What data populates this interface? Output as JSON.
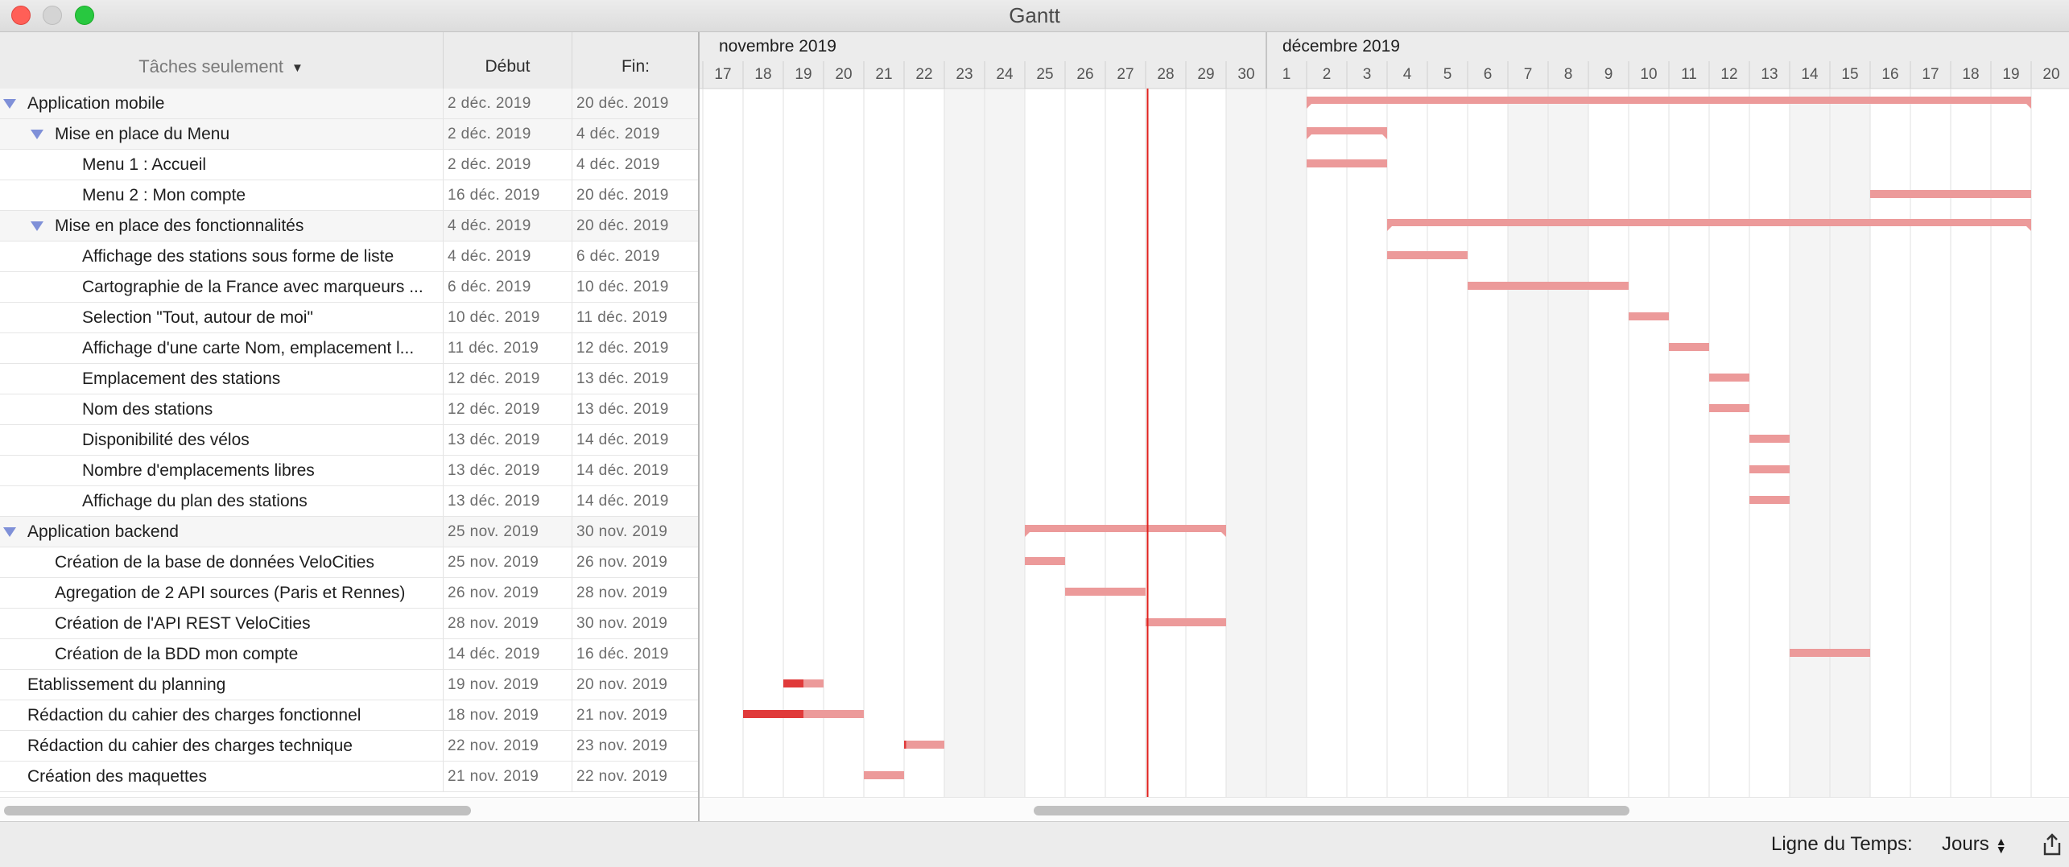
{
  "window": {
    "title": "Gantt"
  },
  "table": {
    "header": {
      "name": "Tâches seulement",
      "start": "Début",
      "end": "Fin:"
    },
    "rows": [
      {
        "name": "Application mobile",
        "start": "2 déc. 2019",
        "end": "20 déc. 2019",
        "level": 0,
        "group": true,
        "expanded": true
      },
      {
        "name": "Mise en place du Menu",
        "start": "2 déc. 2019",
        "end": "4 déc. 2019",
        "level": 1,
        "group": true,
        "expanded": true
      },
      {
        "name": "Menu 1 : Accueil",
        "start": "2 déc. 2019",
        "end": "4 déc. 2019",
        "level": 2,
        "group": false
      },
      {
        "name": "Menu 2 : Mon compte",
        "start": "16 déc. 2019",
        "end": "20 déc. 2019",
        "level": 2,
        "group": false
      },
      {
        "name": "Mise en place des fonctionnalités",
        "start": "4 déc. 2019",
        "end": "20 déc. 2019",
        "level": 1,
        "group": true,
        "expanded": true
      },
      {
        "name": "Affichage des stations sous forme de liste",
        "start": "4 déc. 2019",
        "end": "6 déc. 2019",
        "level": 2,
        "group": false
      },
      {
        "name": "Cartographie de la France avec marqueurs ...",
        "start": "6 déc. 2019",
        "end": "10 déc. 2019",
        "level": 2,
        "group": false
      },
      {
        "name": "Selection \"Tout, autour de moi\"",
        "start": "10 déc. 2019",
        "end": "11 déc. 2019",
        "level": 2,
        "group": false
      },
      {
        "name": "Affichage d'une carte Nom, emplacement l...",
        "start": "11 déc. 2019",
        "end": "12 déc. 2019",
        "level": 2,
        "group": false
      },
      {
        "name": "Emplacement des stations",
        "start": "12 déc. 2019",
        "end": "13 déc. 2019",
        "level": 2,
        "group": false
      },
      {
        "name": "Nom des stations",
        "start": "12 déc. 2019",
        "end": "13 déc. 2019",
        "level": 2,
        "group": false
      },
      {
        "name": "Disponibilité des vélos",
        "start": "13 déc. 2019",
        "end": "14 déc. 2019",
        "level": 2,
        "group": false
      },
      {
        "name": "Nombre d'emplacements libres",
        "start": "13 déc. 2019",
        "end": "14 déc. 2019",
        "level": 2,
        "group": false
      },
      {
        "name": "Affichage du plan des stations",
        "start": "13 déc. 2019",
        "end": "14 déc. 2019",
        "level": 2,
        "group": false
      },
      {
        "name": "Application backend",
        "start": "25 nov. 2019",
        "end": "30 nov. 2019",
        "level": 0,
        "group": true,
        "expanded": true
      },
      {
        "name": "Création de la base de données VeloCities",
        "start": "25 nov. 2019",
        "end": "26 nov. 2019",
        "level": 1,
        "group": false
      },
      {
        "name": "Agregation de 2 API sources (Paris et Rennes)",
        "start": "26 nov. 2019",
        "end": "28 nov. 2019",
        "level": 1,
        "group": false
      },
      {
        "name": "Création de l'API REST VeloCities",
        "start": "28 nov. 2019",
        "end": "30 nov. 2019",
        "level": 1,
        "group": false
      },
      {
        "name": "Création de la BDD mon compte",
        "start": "14 déc. 2019",
        "end": "16 déc. 2019",
        "level": 1,
        "group": false
      },
      {
        "name": "Etablissement du planning",
        "start": "19 nov. 2019",
        "end": "20 nov. 2019",
        "level": 0,
        "group": false,
        "progress": 0.5
      },
      {
        "name": "Rédaction du cahier des charges fonctionnel",
        "start": "18 nov. 2019",
        "end": "21 nov. 2019",
        "level": 0,
        "group": false,
        "progress": 0.5
      },
      {
        "name": "Rédaction du cahier des charges technique",
        "start": "22 nov. 2019",
        "end": "23 nov. 2019",
        "level": 0,
        "group": false,
        "progress": 0.05
      },
      {
        "name": "Création des maquettes",
        "start": "21 nov. 2019",
        "end": "22 nov. 2019",
        "level": 0,
        "group": false,
        "progress": 0
      }
    ]
  },
  "timeline": {
    "months": [
      {
        "label": "novembre 2019",
        "first_day": "2019-11-17"
      },
      {
        "label": "décembre 2019",
        "first_day": "2019-12-01"
      }
    ],
    "days": [
      "17",
      "18",
      "19",
      "20",
      "21",
      "22",
      "23",
      "24",
      "25",
      "26",
      "27",
      "28",
      "29",
      "30",
      "1",
      "2",
      "3",
      "4",
      "5",
      "6",
      "7",
      "8",
      "9",
      "10",
      "11",
      "12",
      "13",
      "14",
      "15",
      "16",
      "17",
      "18",
      "19",
      "20"
    ],
    "day_dates": [
      "2019-11-17",
      "2019-11-18",
      "2019-11-19",
      "2019-11-20",
      "2019-11-21",
      "2019-11-22",
      "2019-11-23",
      "2019-11-24",
      "2019-11-25",
      "2019-11-26",
      "2019-11-27",
      "2019-11-28",
      "2019-11-29",
      "2019-11-30",
      "2019-12-01",
      "2019-12-02",
      "2019-12-03",
      "2019-12-04",
      "2019-12-05",
      "2019-12-06",
      "2019-12-07",
      "2019-12-08",
      "2019-12-09",
      "2019-12-10",
      "2019-12-11",
      "2019-12-12",
      "2019-12-13",
      "2019-12-14",
      "2019-12-15",
      "2019-12-16",
      "2019-12-17",
      "2019-12-18",
      "2019-12-19",
      "2019-12-20"
    ],
    "today": "2019-11-28",
    "weekend_days": [
      "23",
      "24",
      "30",
      "1",
      "7",
      "8",
      "14",
      "15"
    ]
  },
  "tasks": [
    {
      "start": "2019-12-02",
      "end": "2019-12-20",
      "summary": true
    },
    {
      "start": "2019-12-02",
      "end": "2019-12-04",
      "summary": true
    },
    {
      "start": "2019-12-02",
      "end": "2019-12-04",
      "summary": false
    },
    {
      "start": "2019-12-16",
      "end": "2019-12-20",
      "summary": false
    },
    {
      "start": "2019-12-04",
      "end": "2019-12-20",
      "summary": true
    },
    {
      "start": "2019-12-04",
      "end": "2019-12-06",
      "summary": false
    },
    {
      "start": "2019-12-06",
      "end": "2019-12-10",
      "summary": false
    },
    {
      "start": "2019-12-10",
      "end": "2019-12-11",
      "summary": false
    },
    {
      "start": "2019-12-11",
      "end": "2019-12-12",
      "summary": false
    },
    {
      "start": "2019-12-12",
      "end": "2019-12-13",
      "summary": false
    },
    {
      "start": "2019-12-12",
      "end": "2019-12-13",
      "summary": false
    },
    {
      "start": "2019-12-13",
      "end": "2019-12-14",
      "summary": false
    },
    {
      "start": "2019-12-13",
      "end": "2019-12-14",
      "summary": false
    },
    {
      "start": "2019-12-13",
      "end": "2019-12-14",
      "summary": false
    },
    {
      "start": "2019-11-25",
      "end": "2019-11-30",
      "summary": true
    },
    {
      "start": "2019-11-25",
      "end": "2019-11-26",
      "summary": false
    },
    {
      "start": "2019-11-26",
      "end": "2019-11-28",
      "summary": false
    },
    {
      "start": "2019-11-28",
      "end": "2019-11-30",
      "summary": false
    },
    {
      "start": "2019-12-14",
      "end": "2019-12-16",
      "summary": false
    },
    {
      "start": "2019-11-19",
      "end": "2019-11-20",
      "summary": false,
      "progress": 0.5
    },
    {
      "start": "2019-11-18",
      "end": "2019-11-21",
      "summary": false,
      "progress": 0.5
    },
    {
      "start": "2019-11-22",
      "end": "2019-11-23",
      "summary": false,
      "progress": 0.05
    },
    {
      "start": "2019-11-21",
      "end": "2019-11-22",
      "summary": false,
      "progress": 0
    }
  ],
  "footer": {
    "timeline_label": "Ligne du Temps:",
    "scale_value": "Jours"
  },
  "colors": {
    "bar": "#ec9a9a",
    "bar_progress": "#e03a3a",
    "today_line": "#e0201c",
    "weekend": "#f4f4f4",
    "gridline": "#e2e2e2",
    "disclosure": "#7f90d8"
  }
}
